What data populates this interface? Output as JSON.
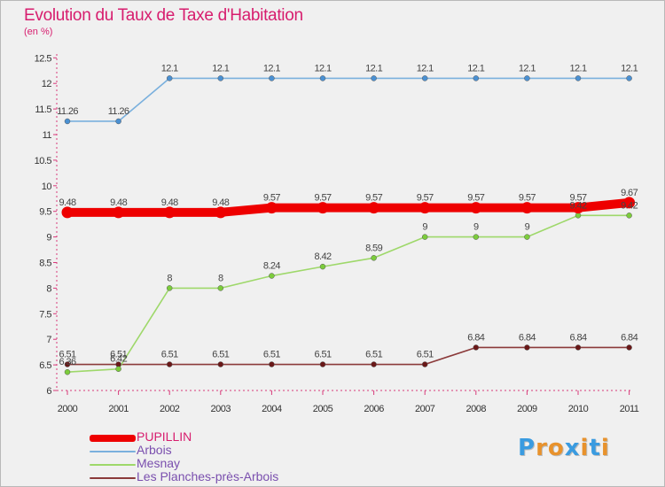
{
  "header": {
    "title": "Evolution du Taux de Taxe d'Habitation",
    "subtitle": "(en %)"
  },
  "logo": {
    "text": "Proxiti",
    "colors": [
      "#3a9be0",
      "#e8922c",
      "#e8922c",
      "#3a9be0",
      "#e8922c",
      "#3a9be0",
      "#e8922c"
    ]
  },
  "chart_data": {
    "type": "line",
    "title": "Evolution du Taux de Taxe d'Habitation",
    "ylabel": "(en %)",
    "xlabel": "",
    "x": [
      "2000",
      "2001",
      "2002",
      "2003",
      "2004",
      "2005",
      "2006",
      "2007",
      "2008",
      "2009",
      "2010",
      "2011"
    ],
    "ylim": [
      6,
      12.5
    ],
    "yticks": [
      "6",
      "6.5",
      "7",
      "7.5",
      "8",
      "8.5",
      "9",
      "9.5",
      "10",
      "10.5",
      "11",
      "11.5",
      "12",
      "12.5"
    ],
    "grid": false,
    "legend_position": "bottom-left",
    "series": [
      {
        "name": "PUPILLIN",
        "color": "#ee0000",
        "values": [
          9.48,
          9.48,
          9.48,
          9.48,
          9.57,
          9.57,
          9.57,
          9.57,
          9.57,
          9.57,
          9.57,
          9.67
        ],
        "labels": [
          "9.48",
          "9.48",
          "9.48",
          "9.48",
          "9.57",
          "9.57",
          "9.57",
          "9.57",
          "9.57",
          "9.57",
          "9.57",
          "9.67"
        ]
      },
      {
        "name": "Arbois",
        "color": "#7ab0dd",
        "values": [
          11.26,
          11.26,
          12.1,
          12.1,
          12.1,
          12.1,
          12.1,
          12.1,
          12.1,
          12.1,
          12.1,
          12.1
        ],
        "labels": [
          "11.26",
          "11.26",
          "12.1",
          "12.1",
          "12.1",
          "12.1",
          "12.1",
          "12.1",
          "12.1",
          "12.1",
          "12.1",
          "12.1"
        ]
      },
      {
        "name": "Mesnay",
        "color": "#9ed86a",
        "values": [
          6.36,
          6.42,
          8,
          8,
          8.24,
          8.42,
          8.59,
          9,
          9,
          9,
          9.42,
          9.42
        ],
        "labels": [
          "6.36",
          "6.42",
          "8",
          "8",
          "8.24",
          "8.42",
          "8.59",
          "9",
          "9",
          "9",
          "9.42",
          "9.42"
        ]
      },
      {
        "name": "Les Planches-près-Arbois",
        "color": "#8b3a3a",
        "values": [
          6.51,
          6.51,
          6.51,
          6.51,
          6.51,
          6.51,
          6.51,
          6.51,
          6.84,
          6.84,
          6.84,
          6.84
        ],
        "labels": [
          "6.51",
          "6.51",
          "6.51",
          "6.51",
          "6.51",
          "6.51",
          "6.51",
          "6.51",
          "6.84",
          "6.84",
          "6.84",
          "6.84"
        ]
      }
    ]
  }
}
